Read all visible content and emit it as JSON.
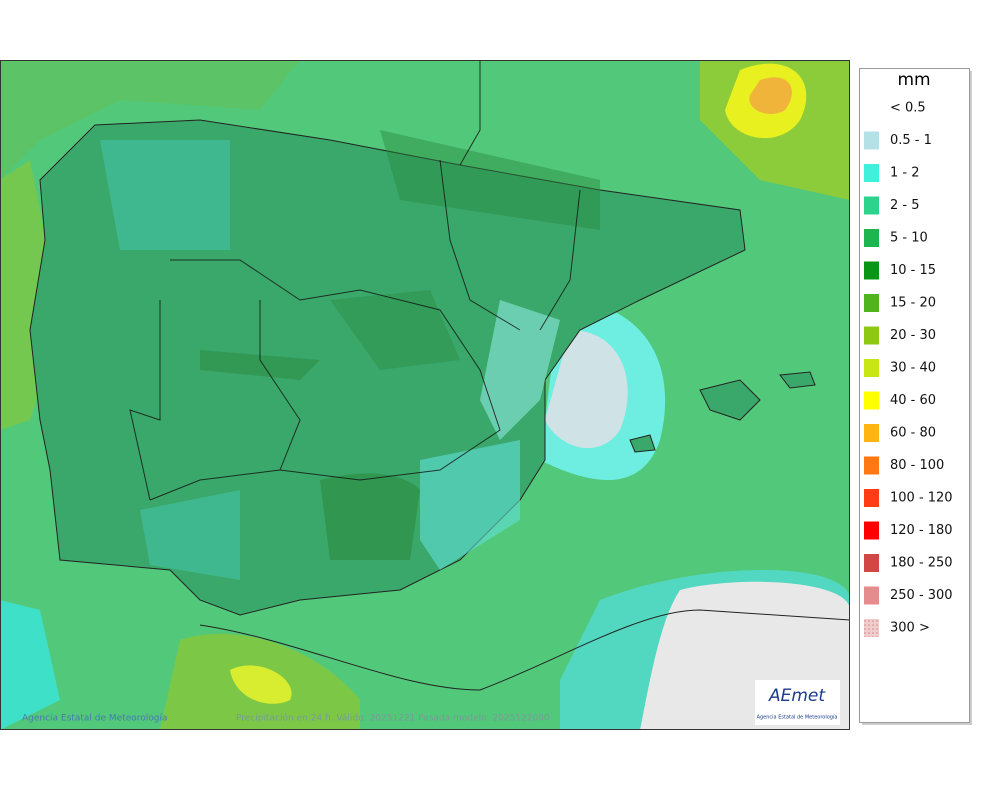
{
  "map": {
    "footer": {
      "agency": "Agencia Estatal de Meteorología",
      "caption": "Precipitación en 24 h. Válido: 20251221 Pasada modelo: 2025122000"
    },
    "logo": {
      "name": "AEmet",
      "subtitle": "Agencia Estatal de Meteorología"
    },
    "legend": {
      "title": "mm",
      "items": [
        {
          "label": "< 0.5",
          "color": "#ffffff"
        },
        {
          "label": "0.5 - 1",
          "color": "#b4e1e6"
        },
        {
          "label": "1 - 2",
          "color": "#3ff0dc"
        },
        {
          "label": "2 - 5",
          "color": "#2dd28c"
        },
        {
          "label": "5 - 10",
          "color": "#1eb450"
        },
        {
          "label": "10 - 15",
          "color": "#0a9614"
        },
        {
          "label": "15 - 20",
          "color": "#50b41e"
        },
        {
          "label": "20 - 30",
          "color": "#8cc814"
        },
        {
          "label": "30 - 40",
          "color": "#c8e614"
        },
        {
          "label": "40 - 60",
          "color": "#ffff00"
        },
        {
          "label": "60 - 80",
          "color": "#ffb414"
        },
        {
          "label": "80 - 100",
          "color": "#ff7814"
        },
        {
          "label": "100 - 120",
          "color": "#ff3c14"
        },
        {
          "label": "120 - 180",
          "color": "#ff0000"
        },
        {
          "label": "180 - 250",
          "color": "#d24646"
        },
        {
          "label": "250 - 300",
          "color": "#e68c8c"
        },
        {
          "label": "300 >",
          "color": "#f0c8c8"
        }
      ]
    }
  }
}
